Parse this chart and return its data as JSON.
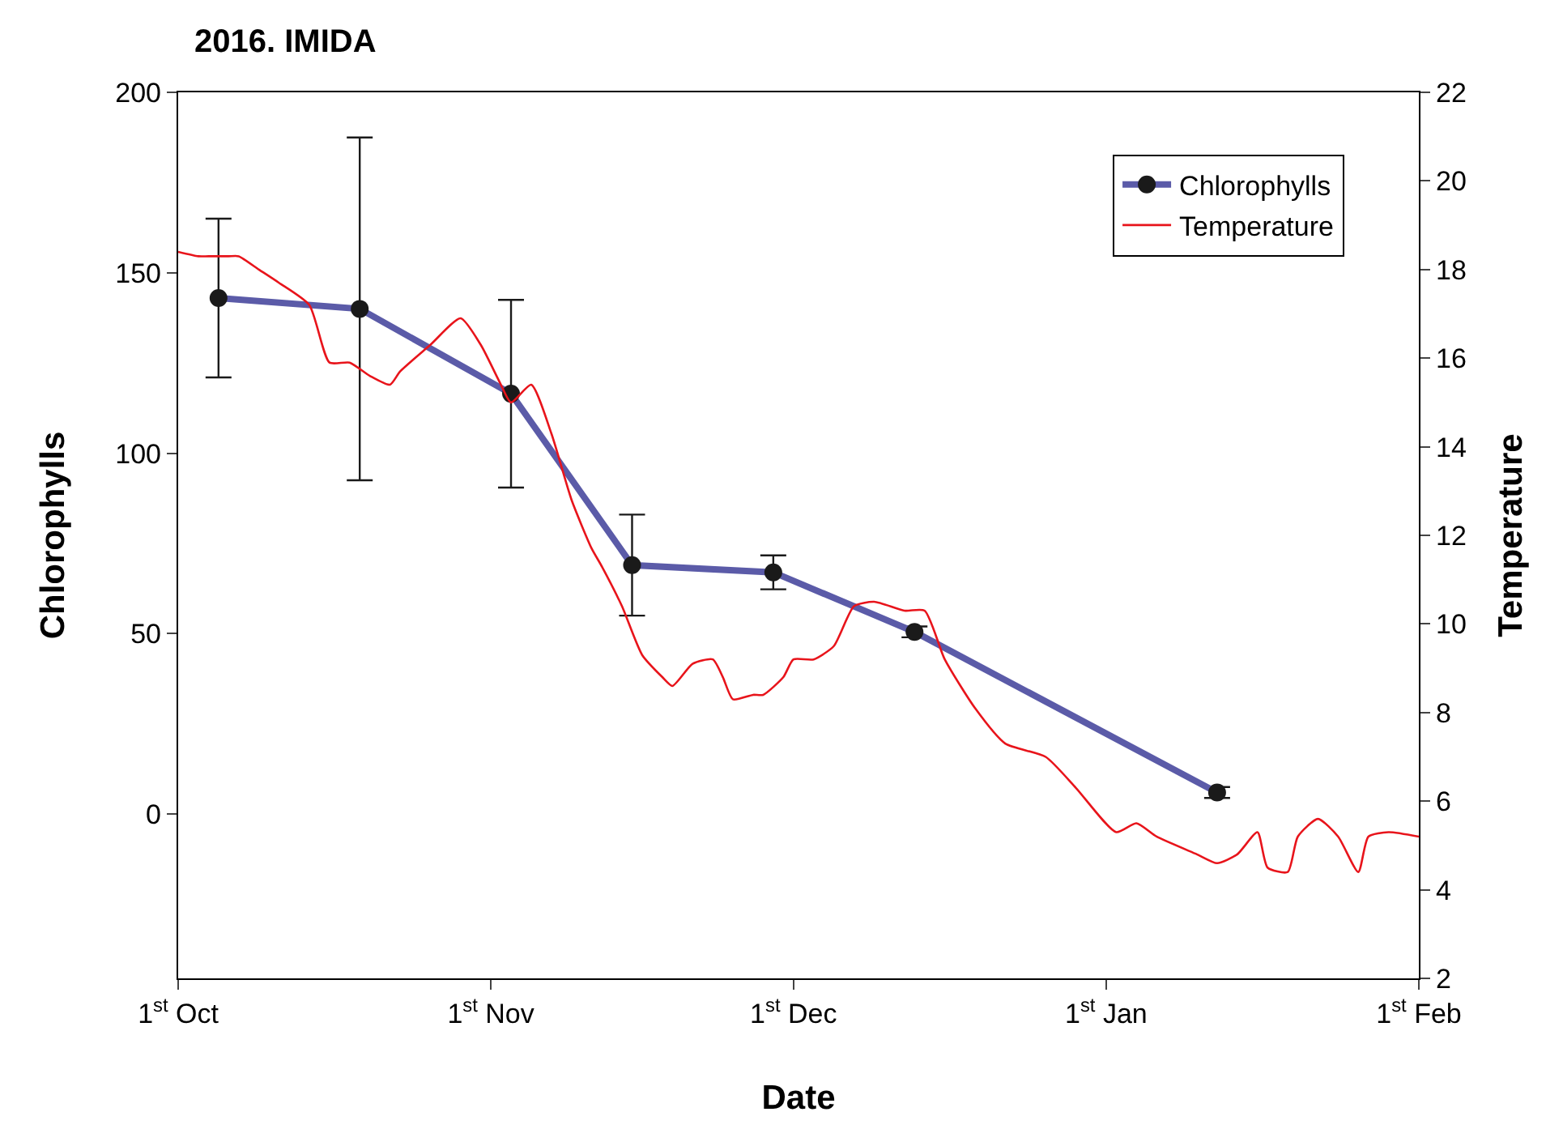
{
  "chart_data": {
    "type": "line",
    "title": "2016. IMIDA",
    "xlabel": "Date",
    "ylabel": "Chlorophylls",
    "y2label": "Temperature",
    "xlim": [
      "2016-10-01",
      "2017-02-01"
    ],
    "xticks": [
      {
        "value": "2016-10-01",
        "label": "1$^{st}$ Oct"
      },
      {
        "value": "2016-11-01",
        "label": "1$^{st}$ Nov"
      },
      {
        "value": "2016-12-01",
        "label": "1$^{st}$ Dec"
      },
      {
        "value": "2017-01-01",
        "label": "1$^{st}$ Jan"
      },
      {
        "value": "2017-02-01",
        "label": "1$^{st}$ Feb"
      }
    ],
    "ylim": [
      -45.5,
      200
    ],
    "yticks": [
      0,
      50,
      100,
      150,
      200
    ],
    "y2lim": [
      2,
      22
    ],
    "y2ticks": [
      2,
      4,
      6,
      8,
      10,
      12,
      14,
      16,
      18,
      20,
      22
    ],
    "legend": "top right",
    "series": [
      {
        "name": "Chlorophylls",
        "color": "#5b5ba8",
        "marker": "circle",
        "line_style": "solid",
        "x": [
          "2016-10-05",
          "2016-10-19",
          "2016-11-03",
          "2016-11-15",
          "2016-11-29",
          "2016-12-13",
          "2017-01-12"
        ],
        "values": [
          143,
          140,
          116.5,
          69,
          67,
          50.5,
          6
        ],
        "errors": [
          22,
          47.5,
          26,
          14,
          4.7,
          1.5,
          1.5
        ]
      },
      {
        "name": "Temperature",
        "color": "#e8141b",
        "marker": "none",
        "line_style": "solid",
        "axis": "y2",
        "x": [
          "2016-10-01",
          "2016-10-03",
          "2016-10-04",
          "2016-10-06",
          "2016-10-07",
          "2016-10-09",
          "2016-10-11",
          "2016-10-14",
          "2016-10-16",
          "2016-10-18",
          "2016-10-20",
          "2016-10-22",
          "2016-10-23",
          "2016-10-26",
          "2016-10-29",
          "2016-10-31",
          "2016-11-02",
          "2016-11-03",
          "2016-11-05",
          "2016-11-07",
          "2016-11-09",
          "2016-11-11",
          "2016-11-12",
          "2016-11-14",
          "2016-11-16",
          "2016-11-18",
          "2016-11-19",
          "2016-11-21",
          "2016-11-23",
          "2016-11-24",
          "2016-11-25",
          "2016-11-27",
          "2016-11-28",
          "2016-11-30",
          "2016-12-01",
          "2016-12-03",
          "2016-12-05",
          "2016-12-07",
          "2016-12-09",
          "2016-12-12",
          "2016-12-14",
          "2016-12-16",
          "2016-12-19",
          "2016-12-22",
          "2016-12-26",
          "2016-12-29",
          "2017-01-02",
          "2017-01-04",
          "2017-01-06",
          "2017-01-10",
          "2017-01-12",
          "2017-01-14",
          "2017-01-16",
          "2017-01-17",
          "2017-01-19",
          "2017-01-20",
          "2017-01-22",
          "2017-01-24",
          "2017-01-26",
          "2017-01-27",
          "2017-01-29",
          "2017-02-01"
        ],
        "values": [
          18.4,
          18.3,
          18.3,
          18.3,
          18.3,
          18.0,
          17.7,
          17.2,
          15.9,
          15.9,
          15.6,
          15.4,
          15.7,
          16.3,
          16.9,
          16.3,
          15.4,
          15.0,
          15.4,
          14.3,
          12.8,
          11.7,
          11.3,
          10.4,
          9.3,
          8.8,
          8.6,
          9.1,
          9.2,
          8.8,
          8.3,
          8.4,
          8.4,
          8.8,
          9.2,
          9.2,
          9.5,
          10.4,
          10.5,
          10.3,
          10.3,
          9.2,
          8.1,
          7.3,
          7.0,
          6.3,
          5.3,
          5.5,
          5.2,
          4.8,
          4.6,
          4.8,
          5.3,
          4.5,
          4.4,
          5.2,
          5.6,
          5.2,
          4.4,
          5.2,
          5.3,
          5.2
        ]
      }
    ]
  }
}
